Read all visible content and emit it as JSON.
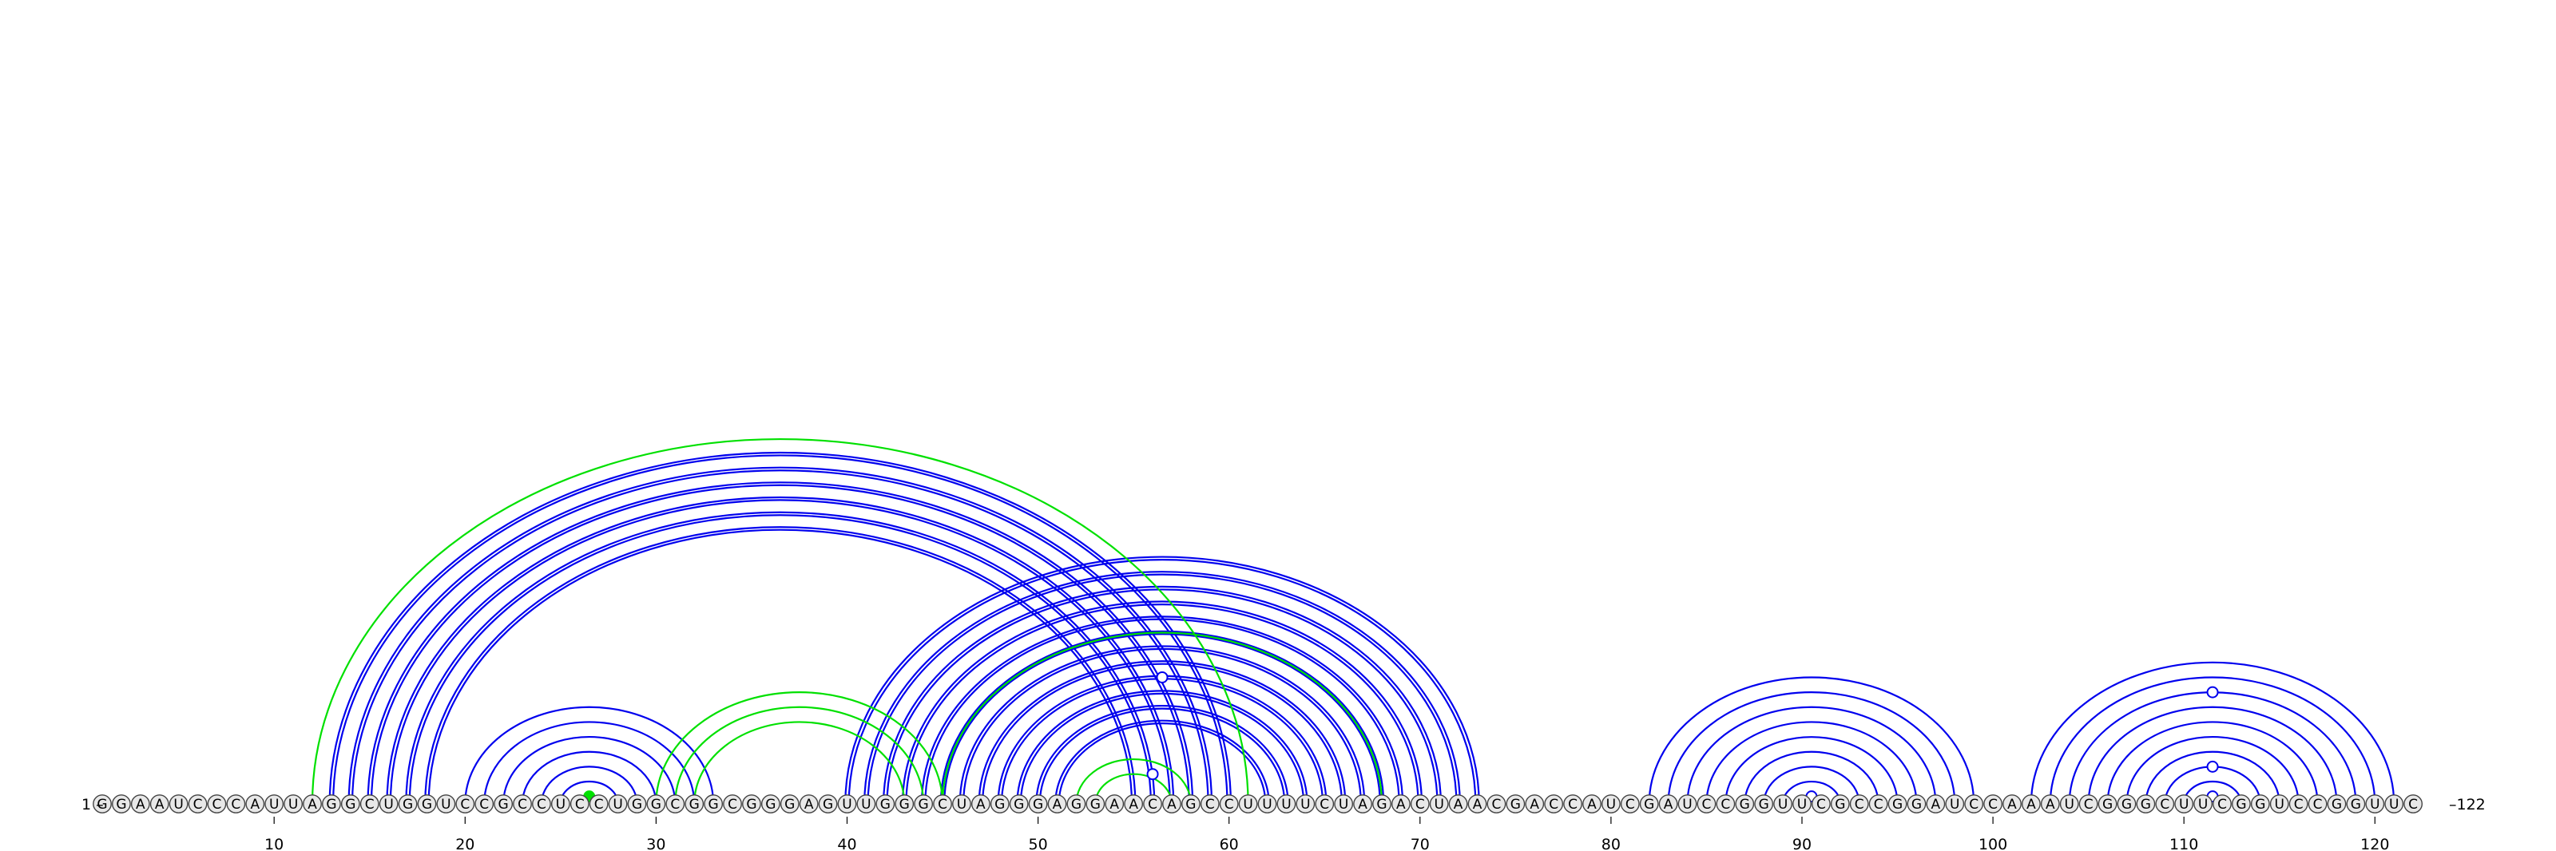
{
  "sequence": "GGAAUCCCAUUAGGCUGGUCCGCCUCCUGGCGGCGGGAGUUGGGCUAGGGAGGAACAGCCUUUUCUAGACUAACGACCAUCGAUCCGGUUCGCCGGAUCCAAAUCGGGCUUCGGUCCGGUUC",
  "start_label": "1 –",
  "end_label": "–122",
  "length": 122,
  "ticks": [
    10,
    20,
    30,
    40,
    50,
    60,
    70,
    80,
    90,
    100,
    110,
    120
  ],
  "colors": {
    "primary": "#0000ee",
    "secondary": "#00e000",
    "nucleotide_fill": "#e8e8e8",
    "nucleotide_stroke": "#444444"
  },
  "arc_groups": [
    {
      "color": "primary",
      "pairs": [
        [
          13,
          60
        ],
        [
          14,
          59
        ],
        [
          15,
          58
        ],
        [
          16,
          57
        ],
        [
          17,
          56
        ],
        [
          18,
          55
        ]
      ],
      "double": true
    },
    {
      "color": "primary",
      "pairs": [
        [
          20,
          33
        ],
        [
          21,
          32
        ],
        [
          22,
          31
        ],
        [
          23,
          30
        ],
        [
          24,
          29
        ],
        [
          25,
          28
        ]
      ],
      "double": false
    },
    {
      "color": "primary",
      "pairs": [
        [
          40,
          73
        ],
        [
          41,
          72
        ],
        [
          42,
          71
        ],
        [
          43,
          70
        ],
        [
          44,
          69
        ],
        [
          45,
          68
        ],
        [
          46,
          67
        ],
        [
          47,
          66
        ],
        [
          48,
          65
        ],
        [
          49,
          64
        ],
        [
          50,
          63
        ],
        [
          51,
          62
        ]
      ],
      "double": true
    },
    {
      "color": "primary",
      "pairs": [
        [
          82,
          99
        ],
        [
          83,
          98
        ],
        [
          84,
          97
        ],
        [
          85,
          96
        ],
        [
          86,
          95
        ],
        [
          87,
          94
        ],
        [
          88,
          93
        ],
        [
          89,
          92
        ]
      ],
      "double": false
    },
    {
      "color": "primary",
      "pairs": [
        [
          102,
          121
        ],
        [
          103,
          120
        ],
        [
          104,
          119
        ],
        [
          105,
          118
        ],
        [
          106,
          117
        ],
        [
          107,
          116
        ],
        [
          108,
          115
        ],
        [
          109,
          114
        ],
        [
          110,
          113
        ]
      ],
      "double": false
    },
    {
      "color": "secondary",
      "pairs": [
        [
          12,
          61
        ],
        [
          26,
          27
        ],
        [
          30,
          45
        ],
        [
          31,
          44
        ],
        [
          32,
          43
        ],
        [
          45,
          68
        ],
        [
          52,
          58
        ],
        [
          53,
          57
        ]
      ],
      "double": false
    }
  ],
  "markers": [
    {
      "pos": 56.5,
      "pair_span": 17,
      "color": "primary",
      "filled": false
    },
    {
      "pos": 56.0,
      "pair_span": 4,
      "color": "primary",
      "filled": false
    },
    {
      "pos": 26.5,
      "pair_span": 1,
      "color": "secondary",
      "filled": true
    },
    {
      "pos": 90.5,
      "pair_span": 1,
      "color": "primary",
      "filled": false
    },
    {
      "pos": 111.5,
      "pair_span": 1,
      "color": "primary",
      "filled": false
    },
    {
      "pos": 111.5,
      "pair_span": 5,
      "color": "primary",
      "filled": false
    },
    {
      "pos": 111.5,
      "pair_span": 15,
      "color": "primary",
      "filled": false
    }
  ]
}
